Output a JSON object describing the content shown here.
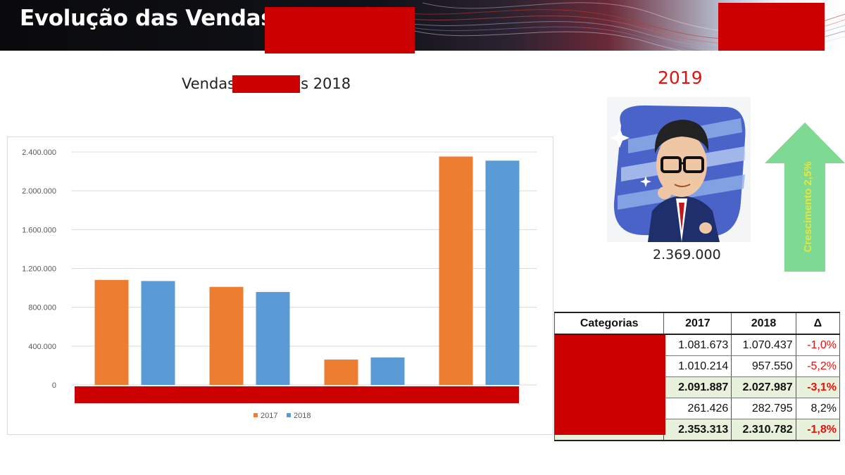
{
  "header": {
    "title": "Evolução das Vendas"
  },
  "chart_data": {
    "type": "bar",
    "title": "Vendas / 2017 vs 2018",
    "categories": [
      "",
      "",
      "",
      ""
    ],
    "series": [
      {
        "name": "2017",
        "color": "#ed7d31",
        "values": [
          1081673,
          1010214,
          261426,
          2353313
        ]
      },
      {
        "name": "2018",
        "color": "#5b9bd5",
        "values": [
          1070437,
          957550,
          282795,
          2310782
        ]
      }
    ],
    "ylim": [
      0,
      2400000
    ],
    "yticks": [
      "0",
      "400.000",
      "800.000",
      "1.200.000",
      "1.600.000",
      "2.000.000",
      "2.400.000"
    ],
    "ytick_values": [
      0,
      400000,
      800000,
      1200000,
      1600000,
      2000000,
      2400000
    ],
    "grid": true,
    "legend": "bottom-center",
    "xlabel": "",
    "ylabel": ""
  },
  "forecast": {
    "year": "2019",
    "value": "2.369.000",
    "growth_label": "Crescimento 2,5%",
    "arrow_color": "#7ed992",
    "label_color": "#e6e63a"
  },
  "table": {
    "headers": [
      "Categorias",
      "2017",
      "2018",
      "Δ"
    ],
    "rows": [
      {
        "category": "",
        "v2017": "1.081.673",
        "v2018": "1.070.437",
        "delta": "-1,0%",
        "negative": true,
        "subtotal": false
      },
      {
        "category": "e",
        "v2017": "1.010.214",
        "v2018": "957.550",
        "delta": "-5,2%",
        "negative": true,
        "subtotal": false
      },
      {
        "category": "",
        "v2017": "2.091.887",
        "v2018": "2.027.987",
        "delta": "-3,1%",
        "negative": true,
        "subtotal": true
      },
      {
        "category": "",
        "v2017": "261.426",
        "v2018": "282.795",
        "delta": "8,2%",
        "negative": false,
        "subtotal": false
      },
      {
        "category": "",
        "v2017": "2.353.313",
        "v2018": "2.310.782",
        "delta": "-1,8%",
        "negative": true,
        "subtotal": true
      }
    ]
  }
}
